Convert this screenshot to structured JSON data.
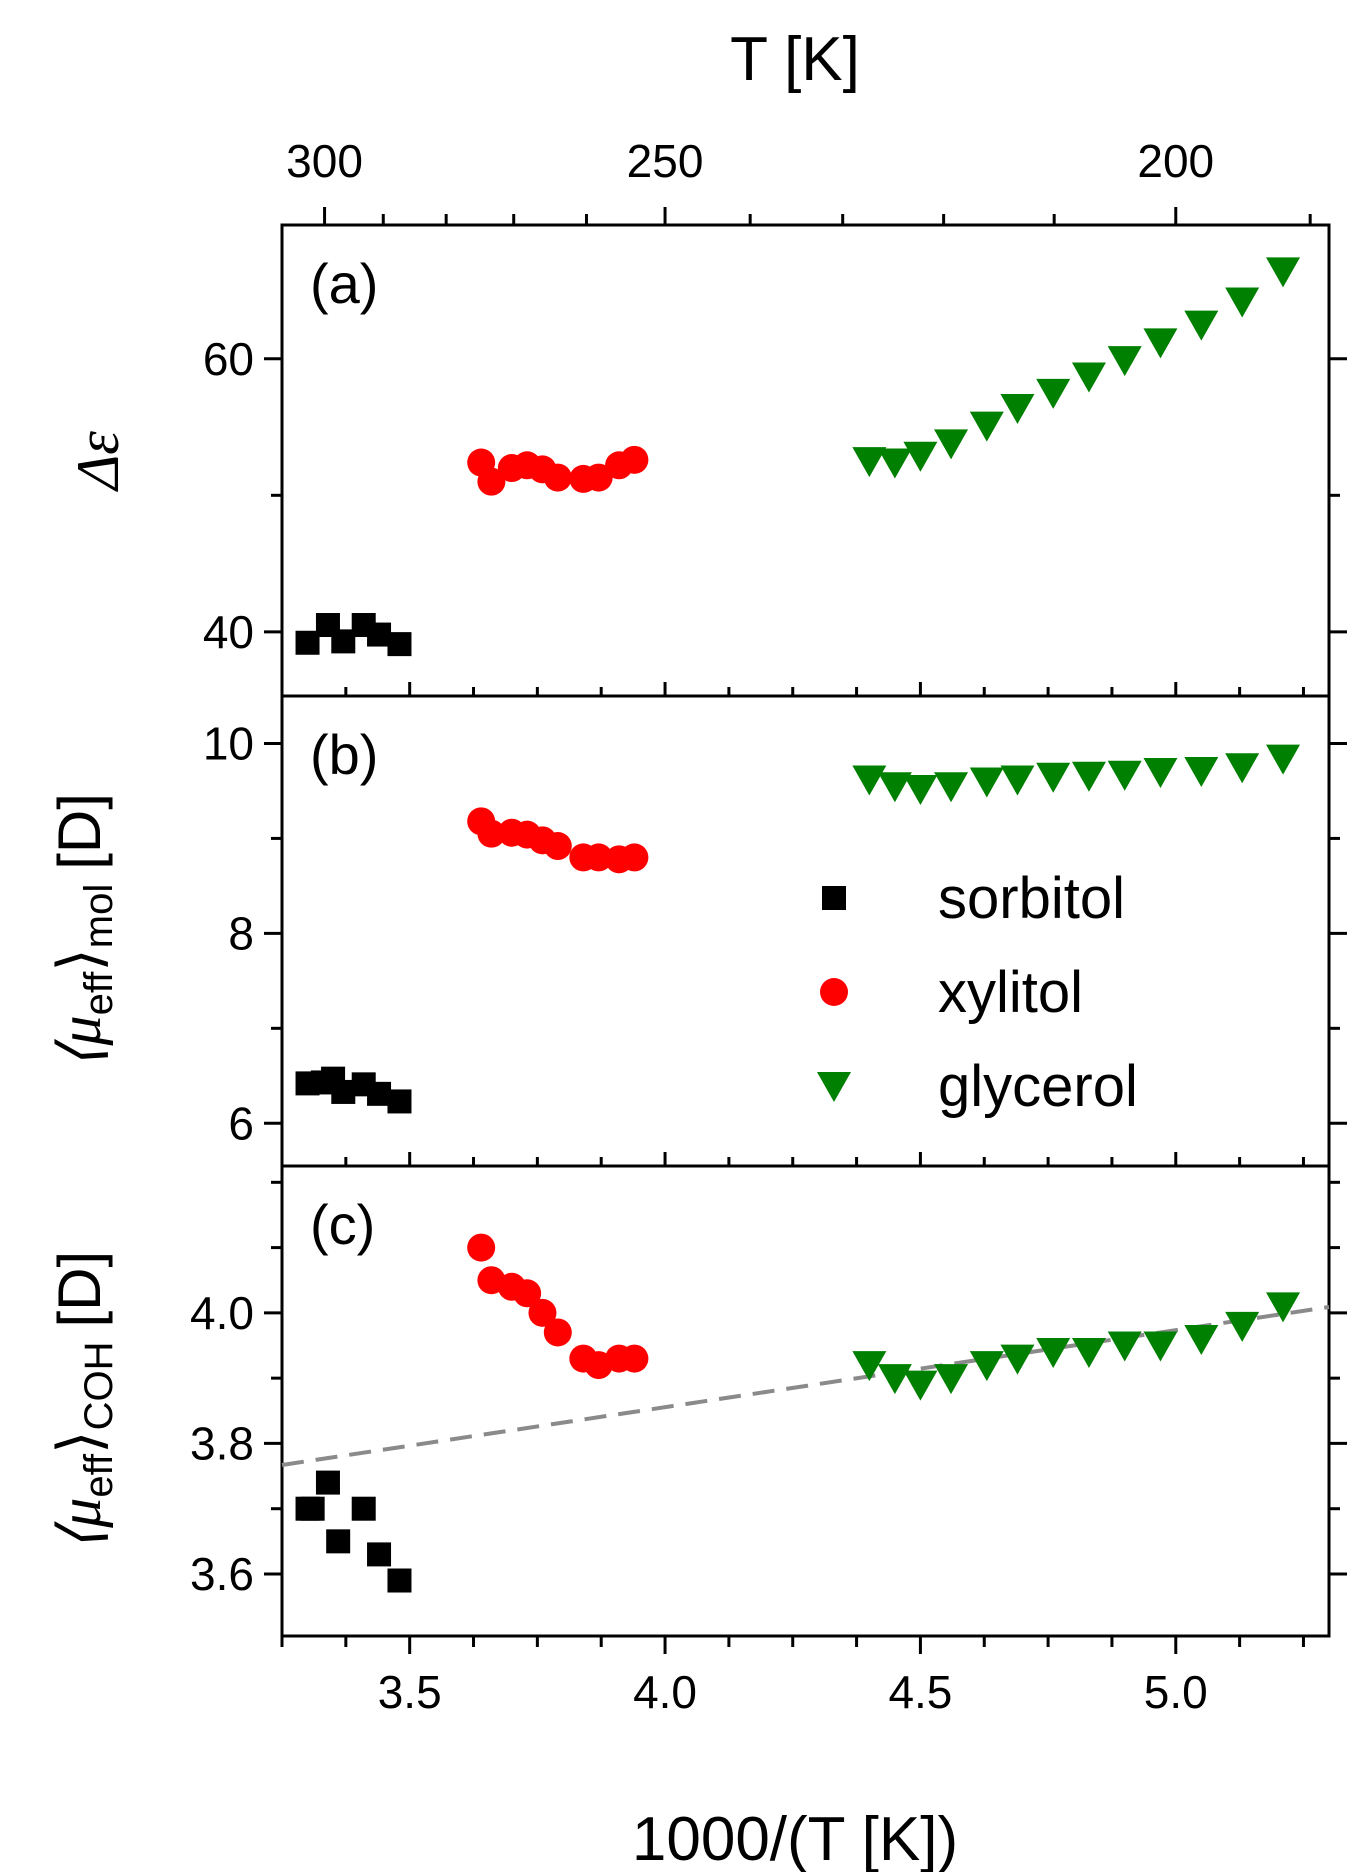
{
  "chart_data": {
    "type": "scatter",
    "x_axis": {
      "label": "1000/(T [K])",
      "range": [
        3.25,
        5.3
      ],
      "ticks": [
        "3.5",
        "4.0",
        "4.5",
        "5.0"
      ]
    },
    "top_axis": {
      "label": "T [K]",
      "ticks": [
        "300",
        "250",
        "200"
      ]
    },
    "legend": {
      "placement": "inside panel (b), right",
      "entries": [
        {
          "name": "sorbitol",
          "color": "#000000",
          "marker": "square"
        },
        {
          "name": "xylitol",
          "color": "#ff0000",
          "marker": "circle"
        },
        {
          "name": "glycerol",
          "color": "#008000",
          "marker": "triangle-down"
        }
      ]
    },
    "panels": [
      {
        "label": "(a)",
        "ylabel": "Δε",
        "ylim": [
          35.3,
          69.8
        ],
        "yticks": [
          "40",
          "60"
        ],
        "series": [
          {
            "name": "sorbitol",
            "x": [
              3.3,
              3.34,
              3.37,
              3.41,
              3.44,
              3.48
            ],
            "y": [
              39.2,
              40.5,
              39.3,
              40.5,
              39.8,
              39.1
            ]
          },
          {
            "name": "xylitol",
            "x": [
              3.64,
              3.66,
              3.7,
              3.73,
              3.76,
              3.79,
              3.84,
              3.87,
              3.91,
              3.94
            ],
            "y": [
              52.4,
              51.0,
              52.0,
              52.2,
              51.9,
              51.3,
              51.2,
              51.3,
              52.2,
              52.6
            ]
          },
          {
            "name": "glycerol",
            "x": [
              4.4,
              4.45,
              4.5,
              4.56,
              4.63,
              4.69,
              4.76,
              4.83,
              4.9,
              4.97,
              5.05,
              5.13,
              5.21
            ],
            "y": [
              52.5,
              52.4,
              52.9,
              53.8,
              55.1,
              56.4,
              57.5,
              58.7,
              59.9,
              61.2,
              62.5,
              64.2,
              66.4
            ]
          }
        ]
      },
      {
        "label": "(b)",
        "ylabel_main": "⟨μ",
        "ylabel_sub1": "eff",
        "ylabel_mid": "⟩",
        "ylabel_sub2": "mol",
        "ylabel_unit": "[D]",
        "ylim": [
          5.55,
          10.5
        ],
        "yticks": [
          "6",
          "8",
          "10"
        ],
        "series": [
          {
            "name": "sorbitol",
            "x": [
              3.3,
              3.33,
              3.35,
              3.37,
              3.41,
              3.44,
              3.48
            ],
            "y": [
              6.42,
              6.43,
              6.47,
              6.33,
              6.41,
              6.31,
              6.23
            ]
          },
          {
            "name": "xylitol",
            "x": [
              3.64,
              3.66,
              3.7,
              3.73,
              3.76,
              3.79,
              3.84,
              3.87,
              3.91,
              3.94
            ],
            "y": [
              9.18,
              9.05,
              9.06,
              9.04,
              8.98,
              8.92,
              8.8,
              8.8,
              8.78,
              8.8
            ]
          },
          {
            "name": "glycerol",
            "x": [
              4.4,
              4.45,
              4.5,
              4.56,
              4.63,
              4.69,
              4.76,
              4.83,
              4.9,
              4.97,
              5.05,
              5.13,
              5.21
            ],
            "y": [
              9.62,
              9.55,
              9.52,
              9.55,
              9.6,
              9.62,
              9.65,
              9.66,
              9.67,
              9.7,
              9.71,
              9.75,
              9.84
            ]
          }
        ]
      },
      {
        "label": "(c)",
        "ylabel_main": "⟨μ",
        "ylabel_sub1": "eff",
        "ylabel_mid": "⟩",
        "ylabel_sub2": "COH",
        "ylabel_unit": "[D]",
        "ylim": [
          3.505,
          4.225
        ],
        "yticks": [
          "3.6",
          "3.8",
          "4.0"
        ],
        "series": [
          {
            "name": "sorbitol",
            "x": [
              3.3,
              3.31,
              3.34,
              3.36,
              3.41,
              3.44,
              3.48
            ],
            "y": [
              3.7,
              3.7,
              3.74,
              3.65,
              3.7,
              3.63,
              3.59
            ]
          },
          {
            "name": "xylitol",
            "x": [
              3.64,
              3.66,
              3.7,
              3.73,
              3.76,
              3.79,
              3.84,
              3.87,
              3.91,
              3.94
            ],
            "y": [
              4.1,
              4.05,
              4.04,
              4.03,
              4.0,
              3.97,
              3.93,
              3.92,
              3.93,
              3.93
            ]
          },
          {
            "name": "glycerol",
            "x": [
              4.4,
              4.45,
              4.5,
              4.56,
              4.63,
              4.69,
              4.76,
              4.83,
              4.9,
              4.97,
              5.05,
              5.13,
              5.21
            ],
            "y": [
              3.92,
              3.9,
              3.89,
              3.9,
              3.92,
              3.93,
              3.94,
              3.94,
              3.95,
              3.95,
              3.96,
              3.98,
              4.01
            ]
          }
        ],
        "reference_line": {
          "style": "dashed",
          "color": "#8a8a8a",
          "x": [
            3.25,
            5.3
          ],
          "y": [
            3.767,
            4.009
          ]
        }
      }
    ]
  }
}
